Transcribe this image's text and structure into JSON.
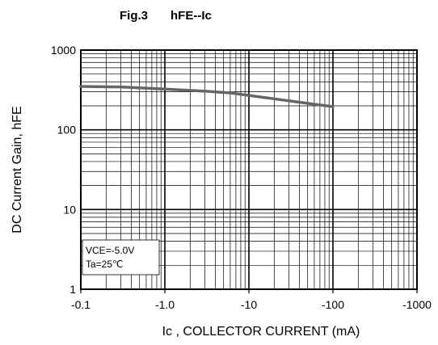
{
  "chart_data": {
    "type": "line",
    "title": "Fig.3",
    "subtitle": "hFE--Ic",
    "xlabel": "Ic , COLLECTOR CURRENT (mA)",
    "ylabel": "DC Current Gain, hFE",
    "x_scale": "log",
    "y_scale": "log",
    "xlim": [
      0.1,
      1000
    ],
    "ylim": [
      1,
      1000
    ],
    "x_tick_labels": [
      "-0.1",
      "-1.0",
      "-10",
      "-100",
      "-1000"
    ],
    "y_tick_labels": [
      "1",
      "10",
      "100",
      "1000"
    ],
    "grid": true,
    "annotations": [
      "VCE=-5.0V",
      "Ta=25℃"
    ],
    "series": [
      {
        "x": [
          0.1,
          0.3,
          1.0,
          3.0,
          6.0,
          10,
          20,
          50,
          100
        ],
        "y": [
          350,
          345,
          325,
          305,
          290,
          270,
          245,
          215,
          195
        ]
      }
    ],
    "colors": {
      "grid": "#000000",
      "curve": "#666666",
      "background": "#ffffff"
    }
  }
}
